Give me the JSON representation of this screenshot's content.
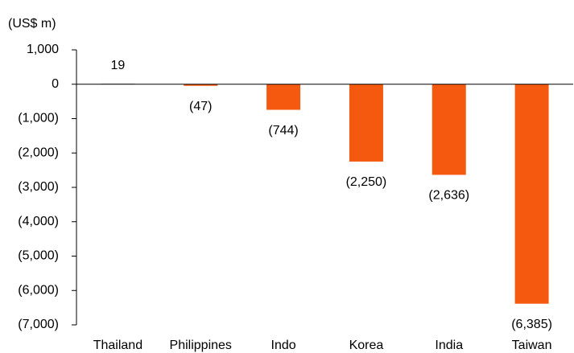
{
  "chart_data": {
    "type": "bar",
    "y_label": "(US$ m)",
    "categories": [
      "Thailand",
      "Philippines",
      "Indo",
      "Korea",
      "India",
      "Taiwan"
    ],
    "values": [
      19,
      -47,
      -744,
      -2250,
      -2636,
      -6385
    ],
    "value_labels": [
      "19",
      "(47)",
      "(744)",
      "(2,250)",
      "(2,636)",
      "(6,385)"
    ],
    "colors": [
      "#a6a6a6",
      "#f4590f",
      "#f4590f",
      "#f4590f",
      "#f4590f",
      "#f4590f"
    ],
    "ylim": [
      -7000,
      1000
    ],
    "yticks": [
      {
        "value": 1000,
        "label": "1,000"
      },
      0,
      {
        "value": -1000,
        "label": "(1,000)"
      },
      {
        "value": -2000,
        "label": "(2,000)"
      },
      {
        "value": -3000,
        "label": "(3,000)"
      },
      {
        "value": -4000,
        "label": "(4,000)"
      },
      {
        "value": -5000,
        "label": "(5,000)"
      },
      {
        "value": -6000,
        "label": "(6,000)"
      },
      {
        "value": -7000,
        "label": "(7,000)"
      }
    ],
    "grid": false
  }
}
